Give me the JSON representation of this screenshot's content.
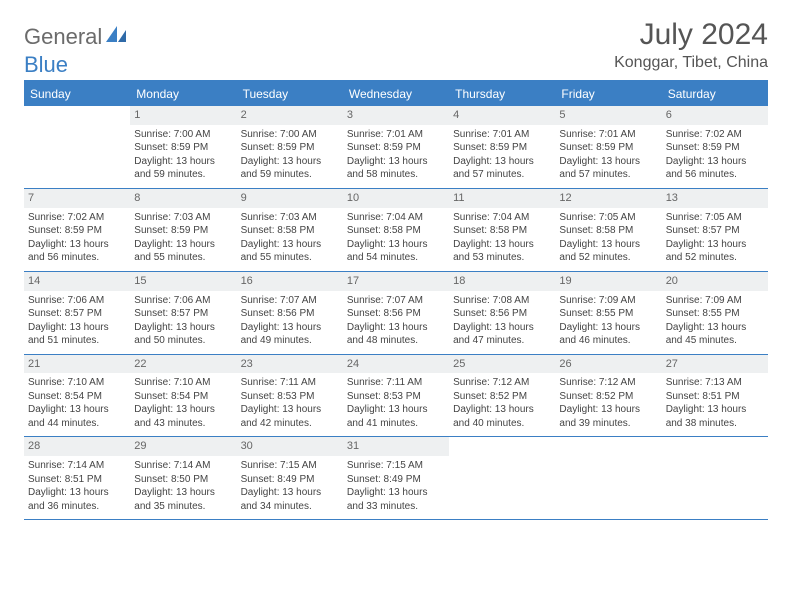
{
  "brand": {
    "name1": "General",
    "name2": "Blue"
  },
  "title": "July 2024",
  "location": "Konggar, Tibet, China",
  "colors": {
    "header_bg": "#3b7fc4",
    "header_fg": "#ffffff",
    "rule": "#3b7fc4",
    "daynum_bg": "#eef0f1",
    "text": "#444444",
    "logo_gray": "#6b6b6b",
    "logo_blue": "#3b7fc4"
  },
  "weekdays": [
    "Sunday",
    "Monday",
    "Tuesday",
    "Wednesday",
    "Thursday",
    "Friday",
    "Saturday"
  ],
  "weeks": [
    [
      null,
      {
        "d": "1",
        "sr": "Sunrise: 7:00 AM",
        "ss": "Sunset: 8:59 PM",
        "dl": "Daylight: 13 hours and 59 minutes."
      },
      {
        "d": "2",
        "sr": "Sunrise: 7:00 AM",
        "ss": "Sunset: 8:59 PM",
        "dl": "Daylight: 13 hours and 59 minutes."
      },
      {
        "d": "3",
        "sr": "Sunrise: 7:01 AM",
        "ss": "Sunset: 8:59 PM",
        "dl": "Daylight: 13 hours and 58 minutes."
      },
      {
        "d": "4",
        "sr": "Sunrise: 7:01 AM",
        "ss": "Sunset: 8:59 PM",
        "dl": "Daylight: 13 hours and 57 minutes."
      },
      {
        "d": "5",
        "sr": "Sunrise: 7:01 AM",
        "ss": "Sunset: 8:59 PM",
        "dl": "Daylight: 13 hours and 57 minutes."
      },
      {
        "d": "6",
        "sr": "Sunrise: 7:02 AM",
        "ss": "Sunset: 8:59 PM",
        "dl": "Daylight: 13 hours and 56 minutes."
      }
    ],
    [
      {
        "d": "7",
        "sr": "Sunrise: 7:02 AM",
        "ss": "Sunset: 8:59 PM",
        "dl": "Daylight: 13 hours and 56 minutes."
      },
      {
        "d": "8",
        "sr": "Sunrise: 7:03 AM",
        "ss": "Sunset: 8:59 PM",
        "dl": "Daylight: 13 hours and 55 minutes."
      },
      {
        "d": "9",
        "sr": "Sunrise: 7:03 AM",
        "ss": "Sunset: 8:58 PM",
        "dl": "Daylight: 13 hours and 55 minutes."
      },
      {
        "d": "10",
        "sr": "Sunrise: 7:04 AM",
        "ss": "Sunset: 8:58 PM",
        "dl": "Daylight: 13 hours and 54 minutes."
      },
      {
        "d": "11",
        "sr": "Sunrise: 7:04 AM",
        "ss": "Sunset: 8:58 PM",
        "dl": "Daylight: 13 hours and 53 minutes."
      },
      {
        "d": "12",
        "sr": "Sunrise: 7:05 AM",
        "ss": "Sunset: 8:58 PM",
        "dl": "Daylight: 13 hours and 52 minutes."
      },
      {
        "d": "13",
        "sr": "Sunrise: 7:05 AM",
        "ss": "Sunset: 8:57 PM",
        "dl": "Daylight: 13 hours and 52 minutes."
      }
    ],
    [
      {
        "d": "14",
        "sr": "Sunrise: 7:06 AM",
        "ss": "Sunset: 8:57 PM",
        "dl": "Daylight: 13 hours and 51 minutes."
      },
      {
        "d": "15",
        "sr": "Sunrise: 7:06 AM",
        "ss": "Sunset: 8:57 PM",
        "dl": "Daylight: 13 hours and 50 minutes."
      },
      {
        "d": "16",
        "sr": "Sunrise: 7:07 AM",
        "ss": "Sunset: 8:56 PM",
        "dl": "Daylight: 13 hours and 49 minutes."
      },
      {
        "d": "17",
        "sr": "Sunrise: 7:07 AM",
        "ss": "Sunset: 8:56 PM",
        "dl": "Daylight: 13 hours and 48 minutes."
      },
      {
        "d": "18",
        "sr": "Sunrise: 7:08 AM",
        "ss": "Sunset: 8:56 PM",
        "dl": "Daylight: 13 hours and 47 minutes."
      },
      {
        "d": "19",
        "sr": "Sunrise: 7:09 AM",
        "ss": "Sunset: 8:55 PM",
        "dl": "Daylight: 13 hours and 46 minutes."
      },
      {
        "d": "20",
        "sr": "Sunrise: 7:09 AM",
        "ss": "Sunset: 8:55 PM",
        "dl": "Daylight: 13 hours and 45 minutes."
      }
    ],
    [
      {
        "d": "21",
        "sr": "Sunrise: 7:10 AM",
        "ss": "Sunset: 8:54 PM",
        "dl": "Daylight: 13 hours and 44 minutes."
      },
      {
        "d": "22",
        "sr": "Sunrise: 7:10 AM",
        "ss": "Sunset: 8:54 PM",
        "dl": "Daylight: 13 hours and 43 minutes."
      },
      {
        "d": "23",
        "sr": "Sunrise: 7:11 AM",
        "ss": "Sunset: 8:53 PM",
        "dl": "Daylight: 13 hours and 42 minutes."
      },
      {
        "d": "24",
        "sr": "Sunrise: 7:11 AM",
        "ss": "Sunset: 8:53 PM",
        "dl": "Daylight: 13 hours and 41 minutes."
      },
      {
        "d": "25",
        "sr": "Sunrise: 7:12 AM",
        "ss": "Sunset: 8:52 PM",
        "dl": "Daylight: 13 hours and 40 minutes."
      },
      {
        "d": "26",
        "sr": "Sunrise: 7:12 AM",
        "ss": "Sunset: 8:52 PM",
        "dl": "Daylight: 13 hours and 39 minutes."
      },
      {
        "d": "27",
        "sr": "Sunrise: 7:13 AM",
        "ss": "Sunset: 8:51 PM",
        "dl": "Daylight: 13 hours and 38 minutes."
      }
    ],
    [
      {
        "d": "28",
        "sr": "Sunrise: 7:14 AM",
        "ss": "Sunset: 8:51 PM",
        "dl": "Daylight: 13 hours and 36 minutes."
      },
      {
        "d": "29",
        "sr": "Sunrise: 7:14 AM",
        "ss": "Sunset: 8:50 PM",
        "dl": "Daylight: 13 hours and 35 minutes."
      },
      {
        "d": "30",
        "sr": "Sunrise: 7:15 AM",
        "ss": "Sunset: 8:49 PM",
        "dl": "Daylight: 13 hours and 34 minutes."
      },
      {
        "d": "31",
        "sr": "Sunrise: 7:15 AM",
        "ss": "Sunset: 8:49 PM",
        "dl": "Daylight: 13 hours and 33 minutes."
      },
      null,
      null,
      null
    ]
  ]
}
